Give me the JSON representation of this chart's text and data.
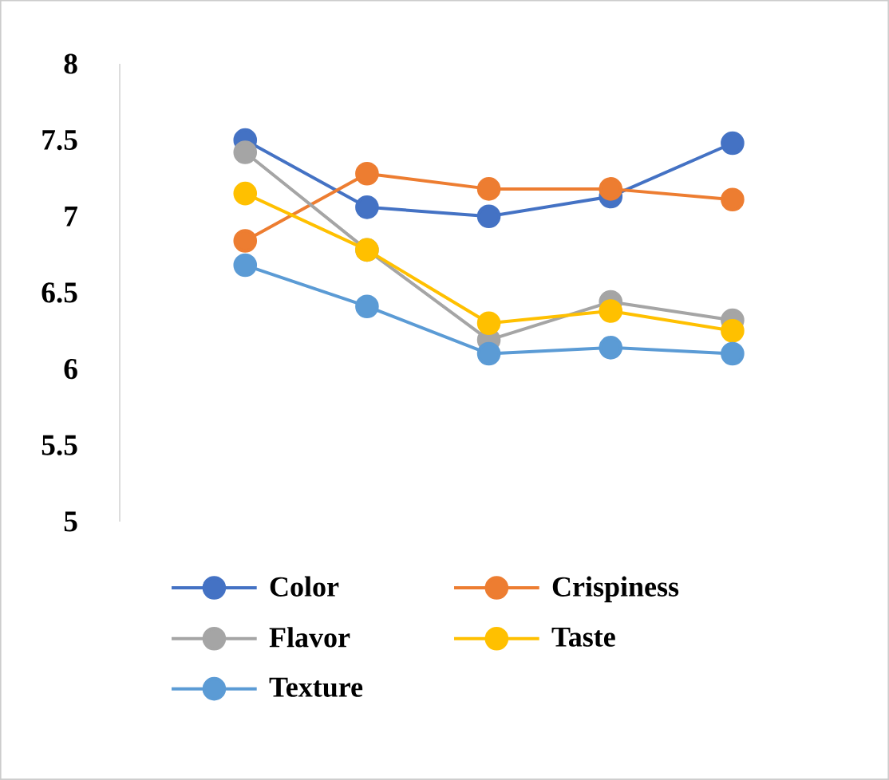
{
  "chart_data": {
    "type": "line",
    "categories": [
      null,
      null,
      null,
      null,
      null
    ],
    "series": [
      {
        "name": "Color",
        "color": "#4472c4",
        "values": [
          7.5,
          7.06,
          7.0,
          7.13,
          7.48
        ]
      },
      {
        "name": "Crispiness",
        "color": "#ed7d31",
        "values": [
          6.84,
          7.28,
          7.18,
          7.18,
          7.11
        ]
      },
      {
        "name": "Flavor",
        "color": "#a5a5a5",
        "values": [
          7.42,
          6.78,
          6.19,
          6.44,
          6.32
        ]
      },
      {
        "name": "Taste",
        "color": "#ffc000",
        "values": [
          7.15,
          6.78,
          6.3,
          6.38,
          6.25
        ]
      },
      {
        "name": "Texture",
        "color": "#5b9bd5",
        "values": [
          6.68,
          6.41,
          6.1,
          6.14,
          6.1
        ]
      }
    ],
    "ylim": [
      5,
      8
    ],
    "yticks": [
      5,
      5.5,
      6,
      6.5,
      7,
      7.5,
      8
    ],
    "legend": "bottom",
    "marker": "circle",
    "line_style": "solid"
  }
}
